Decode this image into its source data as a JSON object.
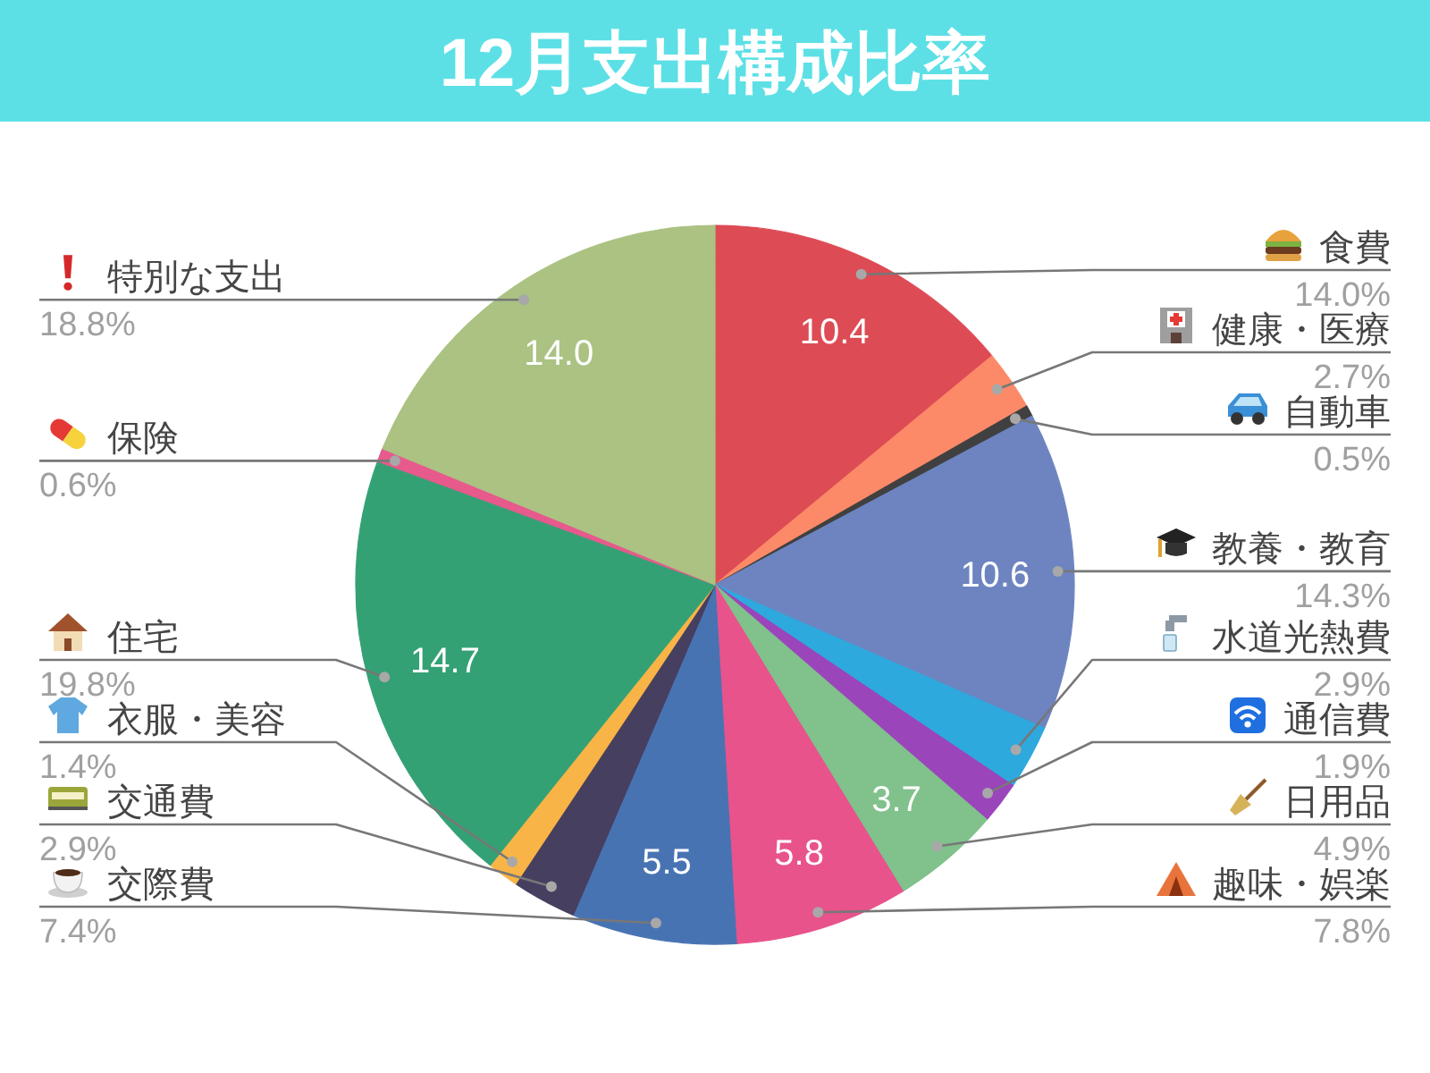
{
  "chart_data": {
    "type": "pie",
    "title": "12月支出構成比率",
    "categories": [
      "食費",
      "健康・医療",
      "自動車",
      "教養・教育",
      "水道光熱費",
      "通信費",
      "日用品",
      "趣味・娯楽",
      "交際費",
      "交通費",
      "衣服・美容",
      "住宅",
      "保険",
      "特別な支出"
    ],
    "values": [
      14.0,
      2.7,
      0.5,
      14.3,
      2.9,
      1.9,
      4.9,
      7.8,
      7.4,
      2.9,
      1.4,
      19.8,
      0.6,
      18.8
    ],
    "colors": [
      "#dd4b55",
      "#fc8a68",
      "#404040",
      "#6d84c1",
      "#2ea9dd",
      "#9b45bb",
      "#80c18c",
      "#e8538c",
      "#4873b3",
      "#463f5f",
      "#f8b447",
      "#34a175",
      "#e65a8c",
      "#abc283"
    ],
    "value_labels": [
      "14.0%",
      "2.7%",
      "0.5%",
      "14.3%",
      "2.9%",
      "1.9%",
      "4.9%",
      "7.8%",
      "7.4%",
      "2.9%",
      "1.4%",
      "19.8%",
      "0.6%",
      "18.8%"
    ],
    "annotations": [
      {
        "text": "10.4",
        "x": "食費"
      },
      {
        "text": "10.6",
        "x": "教養・教育"
      },
      {
        "text": "3.7",
        "x": "日用品"
      },
      {
        "text": "5.8",
        "x": "趣味・娯楽"
      },
      {
        "text": "5.5",
        "x": "交際費"
      },
      {
        "text": "14.7",
        "x": "住宅"
      },
      {
        "text": "14.0",
        "x": "特別な支出"
      }
    ]
  }
}
